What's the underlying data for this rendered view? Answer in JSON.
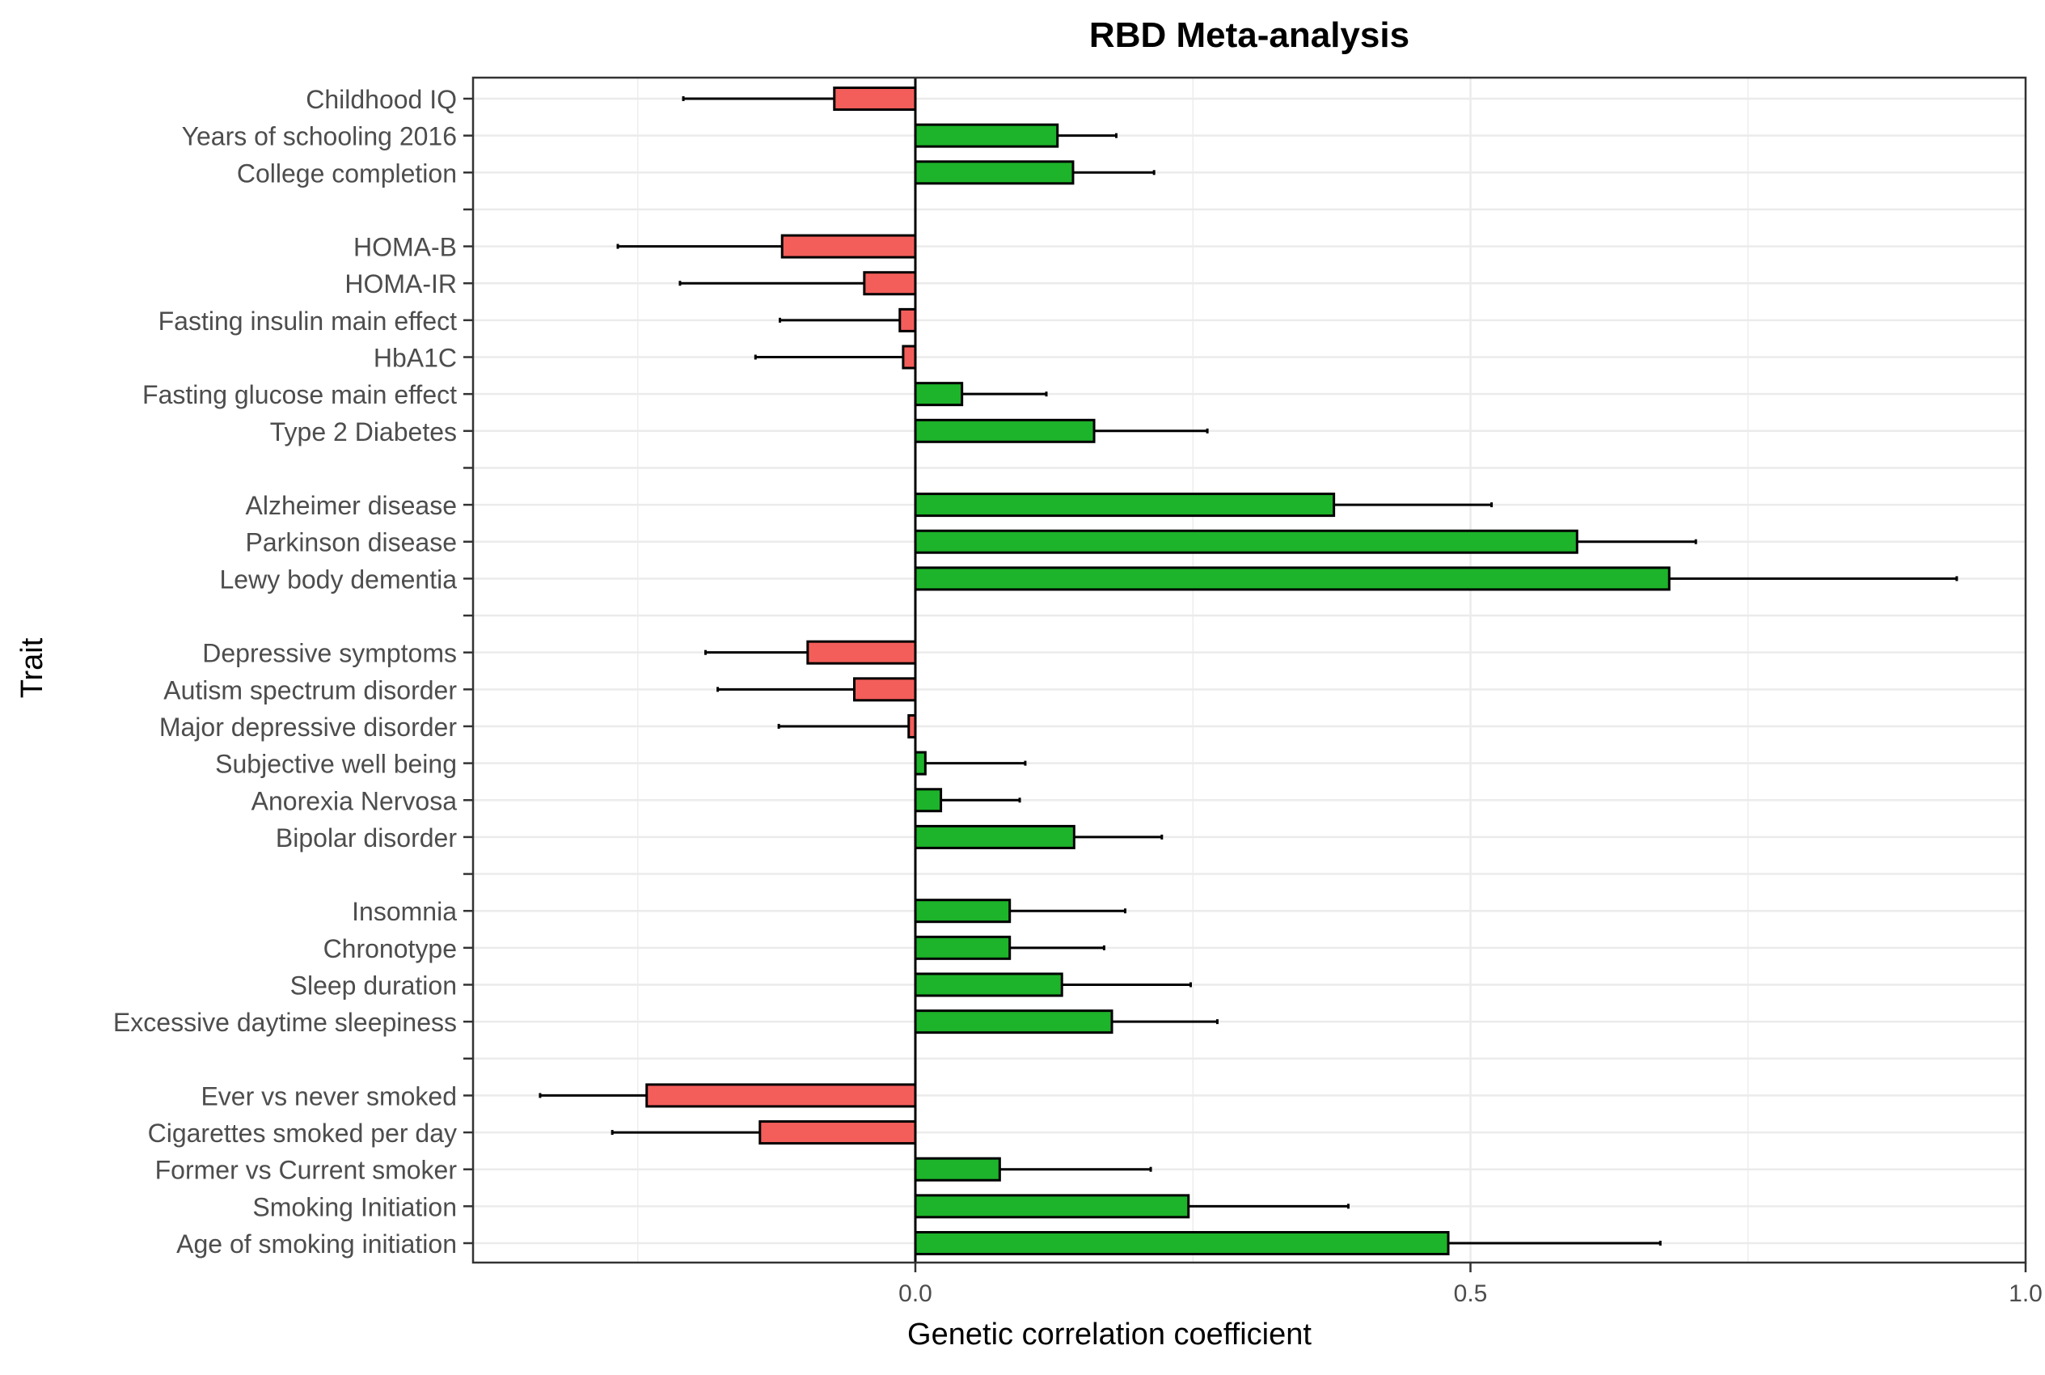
{
  "chart_data": {
    "type": "bar",
    "orientation": "horizontal",
    "title": "RBD Meta-analysis",
    "xlabel": "Genetic correlation coefficient",
    "ylabel": "Trait",
    "xlim": [
      -0.4,
      1.0
    ],
    "xticks": [
      0.0,
      0.5,
      1.0
    ],
    "xtick_labels": [
      "0.0",
      "0.5",
      "1.0"
    ],
    "grid": true,
    "legend": "none",
    "colors": {
      "positive": "#1db32a",
      "negative": "#f35e5a",
      "error_bar": "#000000"
    },
    "categories": [
      "Childhood IQ",
      "Years of schooling 2016",
      "College completion",
      "",
      "HOMA-B",
      "HOMA-IR",
      "Fasting insulin main effect",
      "HbA1C",
      "Fasting glucose main effect",
      "Type 2 Diabetes",
      "",
      "Alzheimer disease",
      "Parkinson disease",
      "Lewy body dementia",
      "",
      "Depressive symptoms",
      "Autism spectrum disorder",
      "Major depressive disorder",
      "Subjective well being",
      "Anorexia Nervosa",
      "Bipolar disorder",
      "",
      "Insomnia",
      "Chronotype",
      "Sleep duration",
      "Excessive daytime sleepiness",
      "",
      "Ever vs never smoked",
      "Cigarettes smoked per day",
      "Former vs Current smoker",
      "Smoking Initiation",
      "Age of smoking initiation"
    ],
    "values": [
      -0.073,
      0.128,
      0.142,
      null,
      -0.12,
      -0.046,
      -0.014,
      -0.011,
      0.042,
      0.161,
      null,
      0.377,
      0.596,
      0.679,
      null,
      -0.097,
      -0.055,
      -0.006,
      0.009,
      0.023,
      0.143,
      null,
      0.085,
      0.085,
      0.132,
      0.177,
      null,
      -0.242,
      -0.14,
      0.076,
      0.246,
      0.48
    ],
    "error": [
      0.136,
      0.053,
      0.073,
      null,
      0.148,
      0.166,
      0.108,
      0.133,
      0.076,
      0.102,
      null,
      0.142,
      0.107,
      0.259,
      null,
      0.092,
      0.123,
      0.117,
      0.09,
      0.071,
      0.079,
      null,
      0.104,
      0.085,
      0.116,
      0.095,
      null,
      0.096,
      0.133,
      0.136,
      0.144,
      0.191
    ]
  }
}
